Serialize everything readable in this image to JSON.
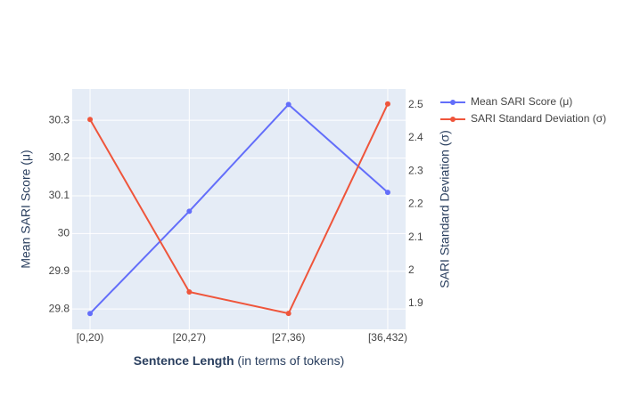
{
  "chart_data": {
    "type": "line",
    "xlabel": {
      "bold": "Sentence Length",
      "rest": "(in terms of tokens)"
    },
    "ylabel": "Mean SARI Score (μ)",
    "y2label": "SARI Standard Deviation (σ)",
    "categories": [
      "[0,20)",
      "[20,27)",
      "[27,36)",
      "[36,432)"
    ],
    "series": [
      {
        "name": "Mean SARI Score (μ)",
        "color": "#636efa",
        "values": [
          29.788,
          30.059,
          30.342,
          30.109
        ]
      },
      {
        "name": "SARI Standard Deviation (σ)",
        "color": "#ef553b",
        "axis": "y2",
        "values": [
          2.456,
          1.935,
          1.87,
          2.503
        ]
      }
    ],
    "ylim": [
      29.746,
      30.383
    ],
    "yticks": [
      29.8,
      29.9,
      30,
      30.1,
      30.2,
      30.3
    ],
    "y2lim": [
      1.822,
      2.548
    ],
    "y2ticks": [
      1.9,
      2,
      2.1,
      2.2,
      2.3,
      2.4,
      2.5
    ],
    "grid": true,
    "legend": "right"
  }
}
